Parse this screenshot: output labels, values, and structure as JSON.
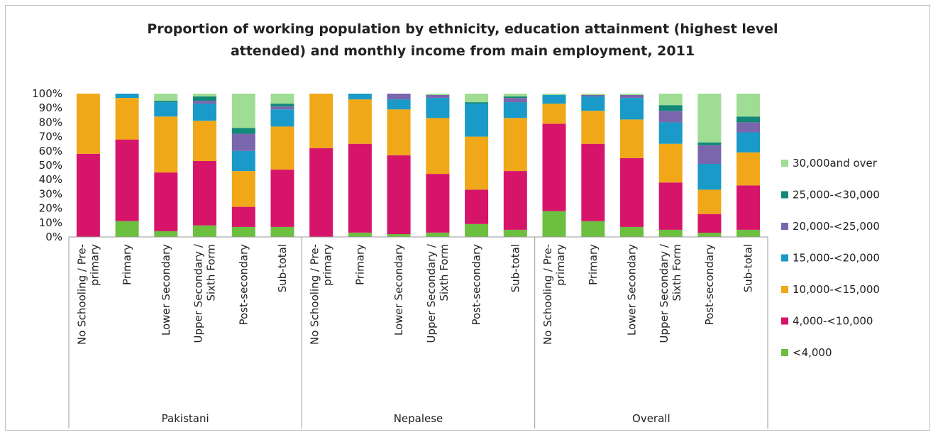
{
  "chart_data": {
    "type": "bar",
    "stacked": true,
    "percent": true,
    "title": "Proportion of working population by ethnicity, education attainment (highest level attended) and monthly income from main employment, 2011",
    "title_lines": [
      "Proportion of working population by ethnicity, education attainment (highest level",
      "attended) and monthly income from main employment, 2011"
    ],
    "y_ticks": [
      "0%",
      "10%",
      "20%",
      "30%",
      "40%",
      "50%",
      "60%",
      "70%",
      "80%",
      "90%",
      "100%"
    ],
    "ylim": [
      0,
      100
    ],
    "groups": [
      {
        "name": "Pakistani",
        "categories": [
          [
            "No Schooling / Pre-",
            "primary"
          ],
          [
            "Primary"
          ],
          [
            "Lower Secondary"
          ],
          [
            "Upper Secondary /",
            "Sixth Form"
          ],
          [
            "Post-secondary"
          ],
          [
            "Sub-total"
          ]
        ]
      },
      {
        "name": "Nepalese",
        "categories": [
          [
            "No Schooling / Pre-",
            "primary"
          ],
          [
            "Primary"
          ],
          [
            "Lower Secondary"
          ],
          [
            "Upper Secondary /",
            "Sixth Form"
          ],
          [
            "Post-secondary"
          ],
          [
            "Sub-total"
          ]
        ]
      },
      {
        "name": "Overall",
        "categories": [
          [
            "No Schooling / Pre-",
            "primary"
          ],
          [
            "Primary"
          ],
          [
            "Lower Secondary"
          ],
          [
            "Upper Secondary /",
            "Sixth Form"
          ],
          [
            "Post-secondary"
          ],
          [
            "Sub-total"
          ]
        ]
      }
    ],
    "series": [
      {
        "name": "<4,000",
        "color": "#6cbf3f",
        "values": [
          0,
          11,
          4,
          8,
          7,
          7,
          0,
          3,
          2,
          3,
          9,
          5,
          18,
          11,
          7,
          5,
          3,
          5
        ]
      },
      {
        "name": "4,000-<10,000",
        "color": "#d6156a",
        "values": [
          58,
          57,
          41,
          45,
          14,
          40,
          62,
          62,
          55,
          41,
          24,
          41,
          61,
          54,
          48,
          33,
          13,
          31
        ]
      },
      {
        "name": "10,000-<15,000",
        "color": "#f0a818",
        "values": [
          42,
          29,
          39,
          28,
          25,
          30,
          38,
          31,
          32,
          39,
          37,
          37,
          14,
          23,
          27,
          27,
          17,
          23
        ]
      },
      {
        "name": "15,000-<20,000",
        "color": "#1a9ac8",
        "values": [
          0,
          3,
          10,
          12,
          14,
          12,
          0,
          4,
          7,
          14,
          23,
          11,
          6,
          10,
          15,
          15,
          18,
          14
        ]
      },
      {
        "name": "20,000-<25,000",
        "color": "#7a66ad",
        "values": [
          0,
          0,
          0,
          2,
          12,
          2,
          0,
          0,
          4,
          2,
          0,
          3,
          0,
          1,
          2,
          8,
          13,
          7
        ]
      },
      {
        "name": "25,000-<30,000",
        "color": "#118878",
        "values": [
          0,
          0,
          1,
          3,
          4,
          2,
          0,
          0,
          0,
          0,
          1,
          1,
          0,
          0,
          0,
          4,
          2,
          4
        ]
      },
      {
        "name": "30,000and over",
        "color": "#9fdd94",
        "values": [
          0,
          0,
          5,
          2,
          24,
          7,
          0,
          0,
          0,
          1,
          6,
          2,
          1,
          1,
          1,
          8,
          34,
          16
        ]
      }
    ],
    "legend_order": [
      "30,000and over",
      "25,000-<30,000",
      "20,000-<25,000",
      "15,000-<20,000",
      "10,000-<15,000",
      "4,000-<10,000",
      "<4,000"
    ],
    "legend_position": "right",
    "grid": false
  }
}
